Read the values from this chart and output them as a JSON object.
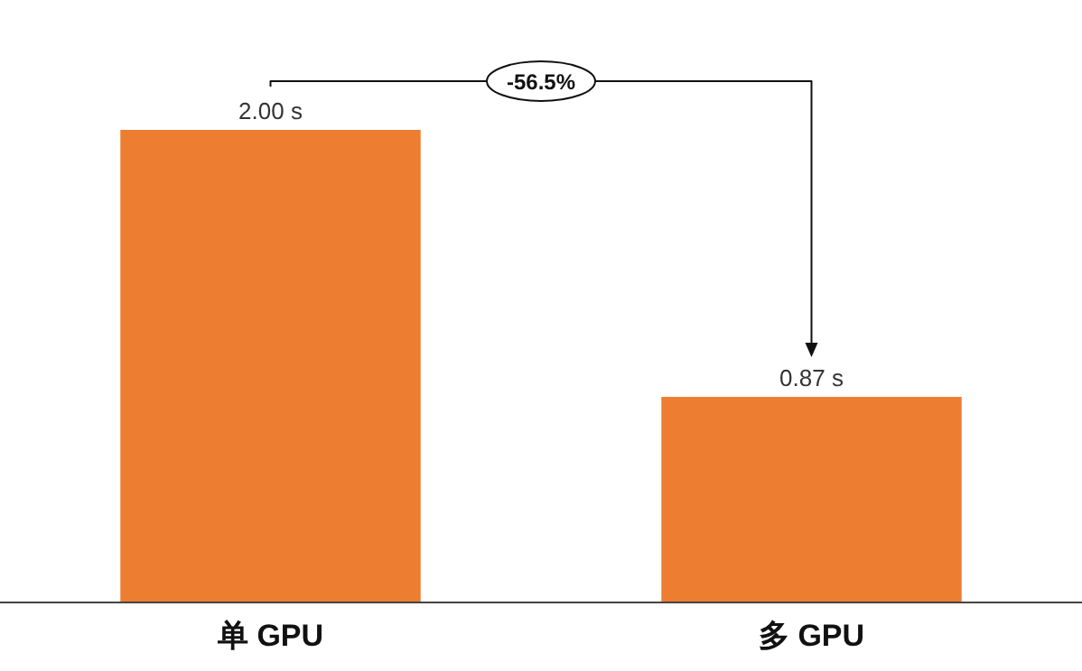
{
  "chart_data": {
    "type": "bar",
    "categories": [
      "单 GPU",
      "多 GPU"
    ],
    "series": [
      {
        "color": "#ed7d31",
        "values": [
          2.0,
          0.87
        ],
        "value_labels": [
          "2.00 s",
          "0.87 s"
        ]
      }
    ],
    "annotations": [
      "-56.5%"
    ]
  }
}
